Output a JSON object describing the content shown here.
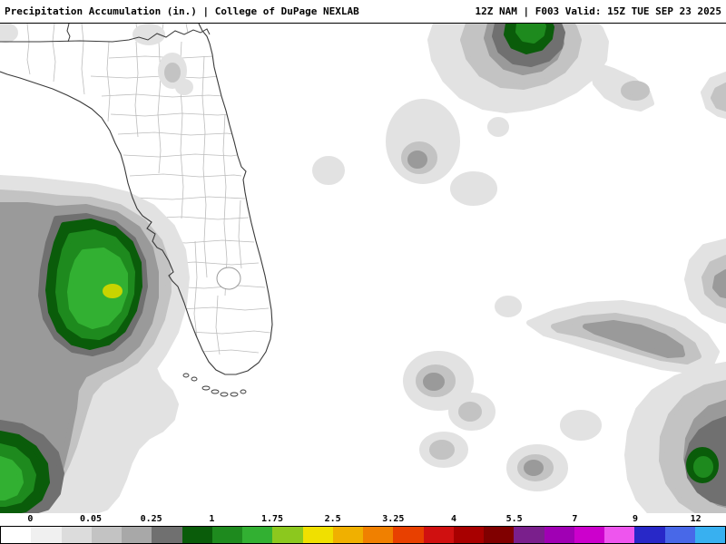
{
  "header": {
    "left": "Precipitation Accumulation (in.) | College of DuPage NEXLAB",
    "right": "12Z NAM | F003 Valid: 15Z TUE SEP 23 2025"
  },
  "map": {
    "region": "Florida and adjacent Gulf/Atlantic waters",
    "palette": {
      "trace_gray_1": "#e2e2e2",
      "trace_gray_2": "#c3c3c3",
      "gray_3": "#9a9a9a",
      "gray_4": "#707070",
      "green_1": "#0a5c0a",
      "green_2": "#1e8a1e",
      "green_3": "#32b032",
      "yellow_core": "#c8d400",
      "coast_line": "#3a3a3a",
      "county_line": "#bcbcbc",
      "water_land": "#ffffff"
    }
  },
  "colorbar": {
    "ticks": [
      "0",
      "0.05",
      "0.25",
      "1",
      "1.75",
      "2.5",
      "3.25",
      "4",
      "5.5",
      "7",
      "9",
      "12"
    ],
    "segment_colors": [
      "#ffffff",
      "#f0f0f0",
      "#dcdcdc",
      "#c3c3c3",
      "#a8a8a8",
      "#707070",
      "#0a5c0a",
      "#1e8a1e",
      "#32b032",
      "#8cc81e",
      "#f0e000",
      "#f0b000",
      "#f08000",
      "#e84000",
      "#d01010",
      "#a80000",
      "#800000",
      "#7a1f8c",
      "#a000b4",
      "#cc00cc",
      "#ee55ee",
      "#2828c8",
      "#4868e8",
      "#38b0f0"
    ]
  }
}
